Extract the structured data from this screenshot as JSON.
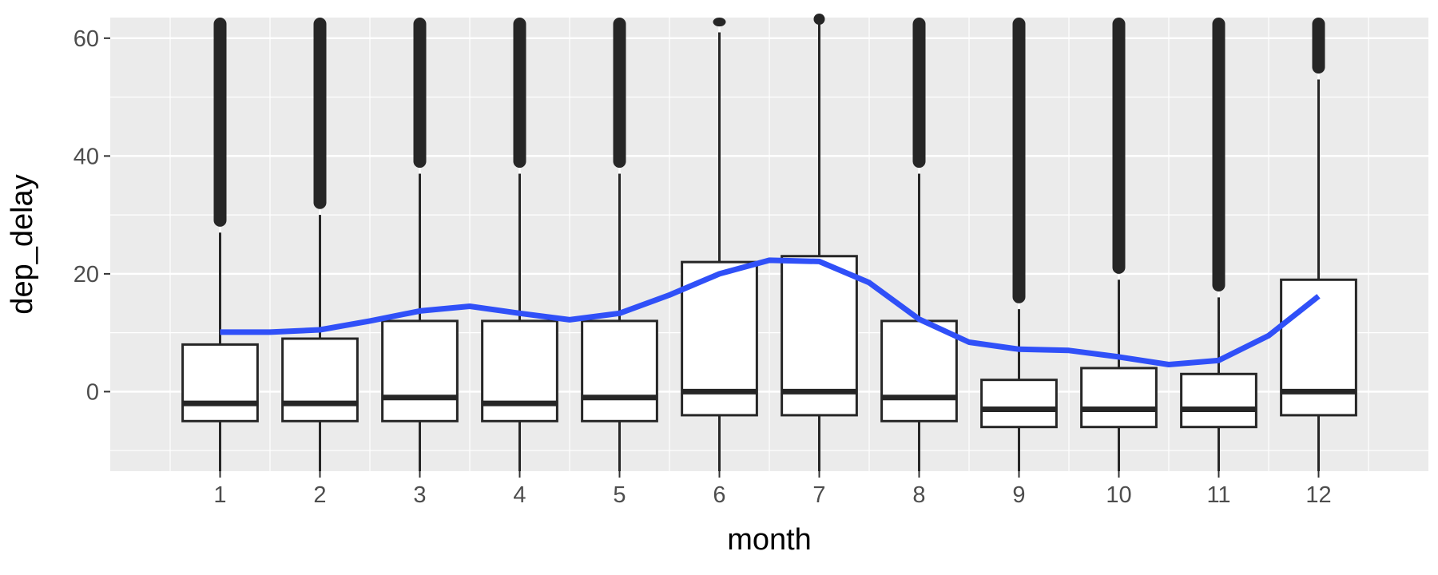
{
  "chart_data": {
    "type": "box",
    "xlabel": "month",
    "ylabel": "dep_delay",
    "categories": [
      "1",
      "2",
      "3",
      "4",
      "5",
      "6",
      "7",
      "8",
      "9",
      "10",
      "11",
      "12"
    ],
    "ylim": [
      -13.5,
      63.5
    ],
    "yticks": [
      0,
      20,
      40,
      60
    ],
    "grid": true,
    "boxes": [
      {
        "month": "1",
        "q1": -5,
        "median": -2,
        "q3": 8,
        "whisker_low": -21,
        "whisker_high": 27,
        "outliers_from": 28
      },
      {
        "month": "2",
        "q1": -5,
        "median": -2,
        "q3": 9,
        "whisker_low": -21,
        "whisker_high": 30,
        "outliers_from": 31
      },
      {
        "month": "3",
        "q1": -5,
        "median": -1,
        "q3": 12,
        "whisker_low": -21,
        "whisker_high": 37,
        "outliers_from": 38
      },
      {
        "month": "4",
        "q1": -5,
        "median": -2,
        "q3": 12,
        "whisker_low": -21,
        "whisker_high": 37,
        "outliers_from": 38
      },
      {
        "month": "5",
        "q1": -5,
        "median": -1,
        "q3": 12,
        "whisker_low": -21,
        "whisker_high": 37,
        "outliers_from": 38
      },
      {
        "month": "6",
        "q1": -4,
        "median": 0,
        "q3": 22,
        "whisker_low": -21,
        "whisker_high": 61,
        "outliers_from": 62
      },
      {
        "month": "7",
        "q1": -4,
        "median": 0,
        "q3": 23,
        "whisker_low": -21,
        "whisker_high": 63,
        "outliers_from": 63.5
      },
      {
        "month": "8",
        "q1": -5,
        "median": -1,
        "q3": 12,
        "whisker_low": -21,
        "whisker_high": 37,
        "outliers_from": 38
      },
      {
        "month": "9",
        "q1": -6,
        "median": -3,
        "q3": 2,
        "whisker_low": -21,
        "whisker_high": 14,
        "outliers_from": 15
      },
      {
        "month": "10",
        "q1": -6,
        "median": -3,
        "q3": 4,
        "whisker_low": -21,
        "whisker_high": 19,
        "outliers_from": 20
      },
      {
        "month": "11",
        "q1": -6,
        "median": -3,
        "q3": 3,
        "whisker_low": -21,
        "whisker_high": 16,
        "outliers_from": 17
      },
      {
        "month": "12",
        "q1": -4,
        "median": 0,
        "q3": 19,
        "whisker_low": -21,
        "whisker_high": 53,
        "outliers_from": 54
      }
    ],
    "smooth_line": {
      "color": "#3050f8",
      "points": [
        [
          1,
          10.1
        ],
        [
          1.5,
          10.1
        ],
        [
          2,
          10.5
        ],
        [
          2.5,
          12.0
        ],
        [
          3,
          13.7
        ],
        [
          3.5,
          14.5
        ],
        [
          4,
          13.3
        ],
        [
          4.5,
          12.2
        ],
        [
          5,
          13.3
        ],
        [
          5.5,
          16.4
        ],
        [
          6,
          20.0
        ],
        [
          6.5,
          22.3
        ],
        [
          7,
          22.1
        ],
        [
          7.5,
          18.5
        ],
        [
          8,
          12.3
        ],
        [
          8.5,
          8.4
        ],
        [
          9,
          7.2
        ],
        [
          9.5,
          7.0
        ],
        [
          10,
          5.9
        ],
        [
          10.5,
          4.6
        ],
        [
          11,
          5.3
        ],
        [
          11.5,
          9.5
        ],
        [
          12,
          16.2
        ]
      ]
    }
  }
}
